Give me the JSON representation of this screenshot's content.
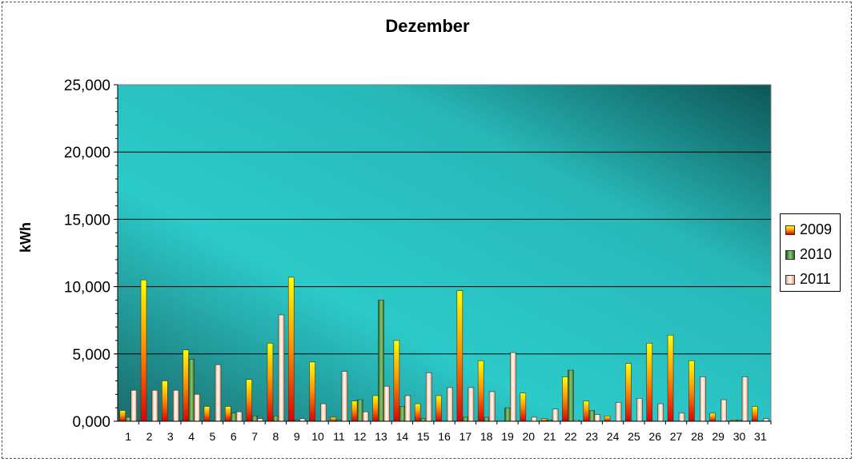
{
  "chart_data": {
    "type": "bar",
    "title": "Dezember",
    "xlabel": "",
    "ylabel": "kWh",
    "ylim": [
      0,
      25
    ],
    "yticks": [
      "0,000",
      "5,000",
      "10,000",
      "15,000",
      "20,000",
      "25,000"
    ],
    "grid": true,
    "legend_position": "right",
    "categories": [
      "1",
      "2",
      "3",
      "4",
      "5",
      "6",
      "7",
      "8",
      "9",
      "10",
      "11",
      "12",
      "13",
      "14",
      "15",
      "16",
      "17",
      "18",
      "19",
      "20",
      "21",
      "22",
      "23",
      "24",
      "25",
      "26",
      "27",
      "28",
      "29",
      "30",
      "31"
    ],
    "series": [
      {
        "name": "2009",
        "color": "#e02000",
        "values": [
          0.8,
          10.5,
          3.0,
          5.3,
          1.1,
          1.1,
          3.1,
          5.8,
          10.7,
          4.4,
          0.3,
          1.5,
          1.9,
          6.0,
          1.3,
          1.9,
          9.7,
          4.5,
          0.0,
          2.1,
          0.2,
          3.3,
          1.5,
          0.4,
          4.3,
          5.8,
          6.4,
          4.5,
          0.6,
          0.1,
          1.1
        ]
      },
      {
        "name": "2010",
        "color": "#3a8a2a",
        "values": [
          0.3,
          0.0,
          0.0,
          4.6,
          0.0,
          0.6,
          0.4,
          0.4,
          0.1,
          0.0,
          0.1,
          1.6,
          9.0,
          1.1,
          0.2,
          0.0,
          0.3,
          0.3,
          1.0,
          0.0,
          0.1,
          3.8,
          0.8,
          0.0,
          0.0,
          0.0,
          0.0,
          0.0,
          0.0,
          0.1,
          0.0
        ]
      },
      {
        "name": "2011",
        "color": "#f4b896",
        "values": [
          2.3,
          2.3,
          2.3,
          2.0,
          4.2,
          0.7,
          0.2,
          7.9,
          0.2,
          1.3,
          3.7,
          0.7,
          2.6,
          1.9,
          3.6,
          2.5,
          2.5,
          2.2,
          5.1,
          0.3,
          0.9,
          0.1,
          0.5,
          1.4,
          1.7,
          1.3,
          0.6,
          3.3,
          1.6,
          3.3,
          0.2
        ]
      }
    ]
  }
}
